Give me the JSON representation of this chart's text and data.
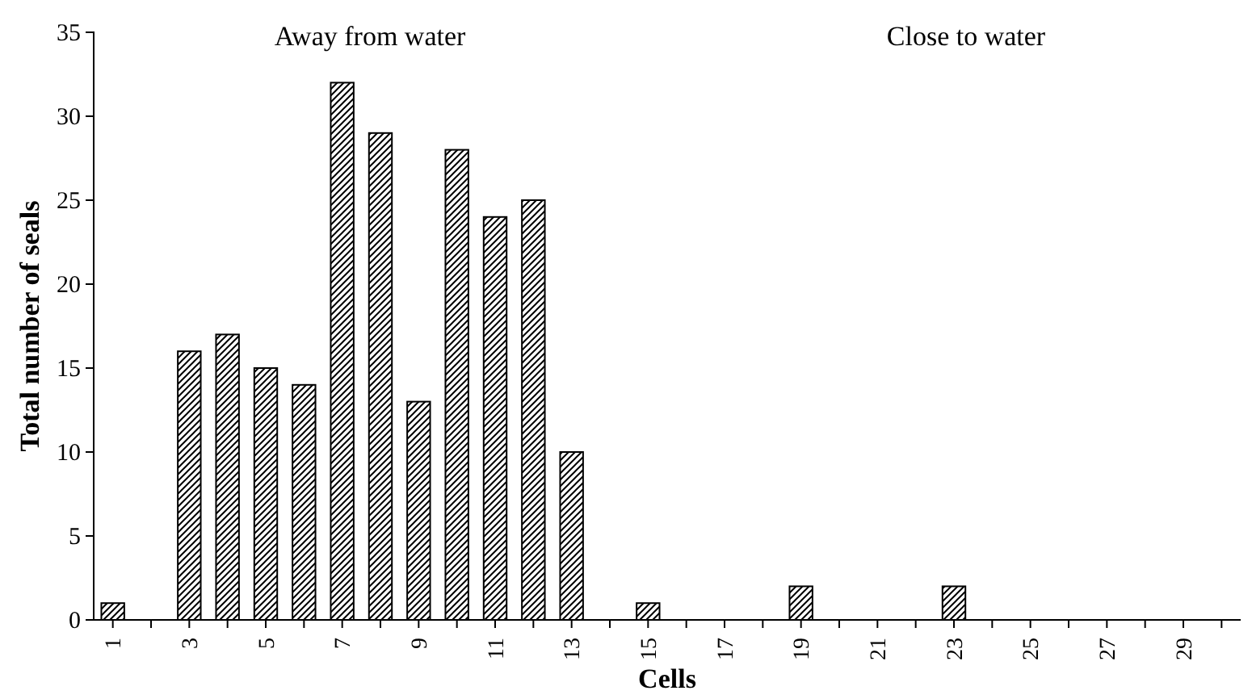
{
  "chart_data": {
    "type": "bar",
    "xlabel": "Cells",
    "ylabel": "Total number of seals",
    "categories": [
      "1",
      null,
      "3",
      null,
      "5",
      null,
      "7",
      null,
      "9",
      null,
      "11",
      null,
      "13",
      null,
      "15",
      null,
      "17",
      null,
      "19",
      null,
      "21",
      null,
      "23",
      null,
      "25",
      null,
      "27",
      null,
      "29",
      null
    ],
    "values": [
      1,
      0,
      16,
      17,
      15,
      14,
      32,
      29,
      13,
      28,
      24,
      25,
      10,
      0,
      1,
      0,
      0,
      0,
      2,
      0,
      0,
      0,
      2,
      0,
      0,
      0,
      0,
      0,
      0,
      0
    ],
    "color": "#000000",
    "ylim": [
      0,
      35
    ],
    "yticks": [
      0,
      5,
      10,
      15,
      20,
      25,
      30,
      35
    ],
    "annotations": [
      "Away from water",
      "Close to water"
    ],
    "grid": false
  }
}
